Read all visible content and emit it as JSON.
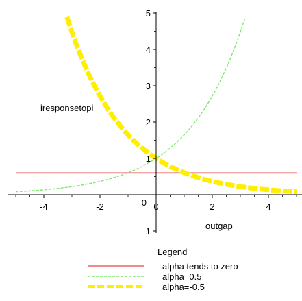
{
  "chart_data": {
    "type": "line",
    "title": "",
    "xlabel": "outgap",
    "ylabel": "iresponsetopi",
    "xlim": [
      -5,
      5
    ],
    "ylim": [
      -1,
      5
    ],
    "x_ticks": [
      -4,
      -2,
      0,
      2,
      4
    ],
    "y_ticks": [
      -1,
      1,
      2,
      3,
      4,
      5
    ],
    "x_tick_labels": [
      "-4",
      "-2",
      "0",
      "2",
      "4"
    ],
    "y_tick_labels": [
      "-1",
      "1",
      "2",
      "3",
      "4",
      "5"
    ],
    "grid": false,
    "legend": {
      "title": "Legend",
      "placement": "bottom-center",
      "entries": [
        "alpha tends to zero",
        "alpha=0.5",
        "alpha=-0.5"
      ]
    },
    "series": [
      {
        "name": "alpha tends to zero",
        "function": "y = 0.6",
        "color": "#f08a8a",
        "style": "solid",
        "x": [
          -5,
          5
        ],
        "y": [
          0.6,
          0.6
        ]
      },
      {
        "name": "alpha=0.5",
        "function": "y = exp(0.5*x)",
        "color": "#7ce86a",
        "style": "dashed",
        "x": [
          -5,
          -4,
          -3,
          -2,
          -1,
          0,
          1,
          2,
          3,
          3.2
        ],
        "y": [
          0.08,
          0.14,
          0.22,
          0.37,
          0.61,
          1.0,
          1.65,
          2.72,
          4.48,
          4.95
        ]
      },
      {
        "name": "alpha=-0.5",
        "function": "y = exp(-0.5*x)",
        "color": "#ffee00",
        "style": "thick-dashed",
        "x": [
          -3.2,
          -3,
          -2,
          -1,
          0,
          1,
          2,
          3,
          4,
          5
        ],
        "y": [
          4.95,
          4.48,
          2.72,
          1.65,
          1.0,
          0.61,
          0.37,
          0.22,
          0.14,
          0.08
        ]
      }
    ]
  }
}
